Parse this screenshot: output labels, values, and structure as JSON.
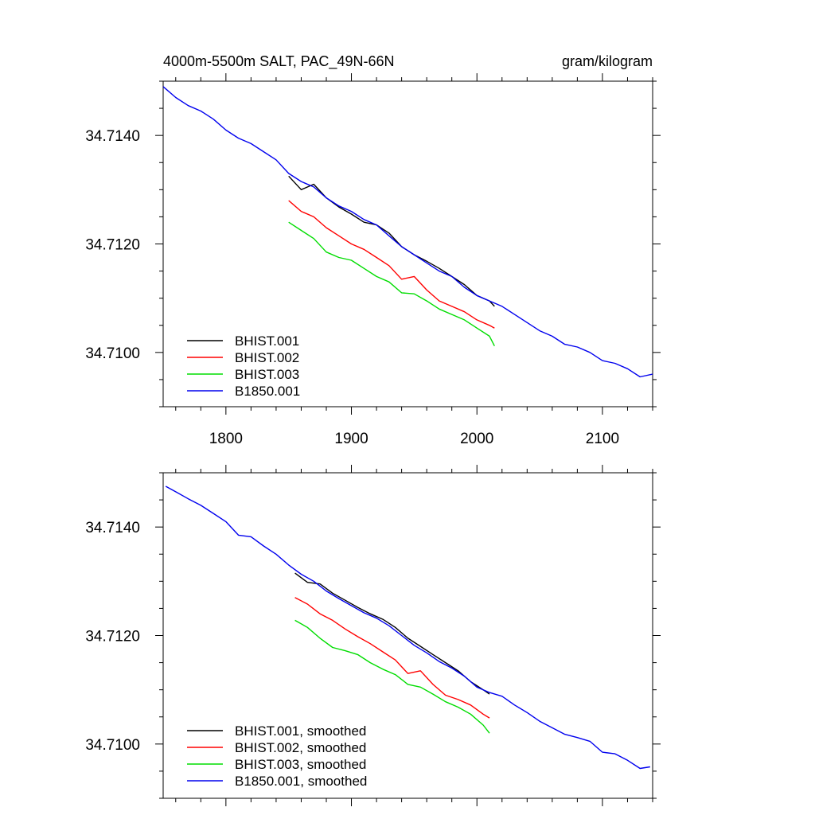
{
  "chart_data": [
    {
      "type": "line",
      "title": "4000m-5500m SALT, PAC_49N-66N",
      "units": "gram/kilogram",
      "xlabel": "",
      "ylabel": "",
      "xlim": [
        1750,
        2140
      ],
      "ylim": [
        34.709,
        34.715
      ],
      "xticks": [
        1800,
        1900,
        2000,
        2100
      ],
      "xtick_labels": [
        "1800",
        "1900",
        "2000",
        "2100"
      ],
      "yticks": [
        34.71,
        34.712,
        34.714
      ],
      "ytick_labels": [
        "34.7100",
        "34.7120",
        "34.7140"
      ],
      "legend_position": "bottom-left",
      "series": [
        {
          "name": "BHIST.001",
          "color": "#000000",
          "x": [
            1850,
            1860,
            1870,
            1880,
            1890,
            1900,
            1910,
            1920,
            1930,
            1940,
            1950,
            1960,
            1970,
            1980,
            1990,
            2000,
            2010,
            2014
          ],
          "y": [
            34.71325,
            34.713,
            34.7131,
            34.71285,
            34.71268,
            34.71255,
            34.7124,
            34.71235,
            34.7122,
            34.71195,
            34.7118,
            34.71168,
            34.71155,
            34.7114,
            34.71125,
            34.71105,
            34.71095,
            34.71085
          ]
        },
        {
          "name": "BHIST.002",
          "color": "#ff0000",
          "x": [
            1850,
            1860,
            1870,
            1880,
            1890,
            1900,
            1910,
            1920,
            1930,
            1940,
            1950,
            1960,
            1970,
            1980,
            1990,
            2000,
            2010,
            2014
          ],
          "y": [
            34.7128,
            34.7126,
            34.7125,
            34.7123,
            34.71215,
            34.712,
            34.7119,
            34.71175,
            34.7116,
            34.71135,
            34.7114,
            34.71115,
            34.71095,
            34.71085,
            34.71075,
            34.7106,
            34.7105,
            34.71045
          ]
        },
        {
          "name": "BHIST.003",
          "color": "#00dd00",
          "x": [
            1850,
            1860,
            1870,
            1880,
            1890,
            1900,
            1910,
            1920,
            1930,
            1940,
            1950,
            1960,
            1970,
            1980,
            1990,
            2000,
            2010,
            2014
          ],
          "y": [
            34.7124,
            34.71225,
            34.7121,
            34.71185,
            34.71175,
            34.7117,
            34.71155,
            34.7114,
            34.7113,
            34.7111,
            34.71108,
            34.71095,
            34.7108,
            34.7107,
            34.7106,
            34.71045,
            34.7103,
            34.71012
          ]
        },
        {
          "name": "B1850.001",
          "color": "#0000ee",
          "x": [
            1750,
            1760,
            1770,
            1780,
            1790,
            1800,
            1810,
            1820,
            1830,
            1840,
            1850,
            1860,
            1870,
            1880,
            1890,
            1900,
            1910,
            1920,
            1930,
            1940,
            1950,
            1960,
            1970,
            1980,
            1990,
            2000,
            2010,
            2020,
            2030,
            2040,
            2050,
            2060,
            2070,
            2080,
            2090,
            2100,
            2110,
            2120,
            2130,
            2140
          ],
          "y": [
            34.7149,
            34.7147,
            34.71455,
            34.71445,
            34.7143,
            34.7141,
            34.71395,
            34.71385,
            34.7137,
            34.71355,
            34.7133,
            34.71315,
            34.71305,
            34.71285,
            34.7127,
            34.7126,
            34.71245,
            34.71235,
            34.71215,
            34.71195,
            34.7118,
            34.71165,
            34.7115,
            34.7114,
            34.7112,
            34.71105,
            34.71095,
            34.71085,
            34.7107,
            34.71055,
            34.7104,
            34.7103,
            34.71015,
            34.7101,
            34.71,
            34.70985,
            34.7098,
            34.7097,
            34.70955,
            34.7096
          ]
        }
      ]
    },
    {
      "type": "line",
      "title": "",
      "xlabel": "",
      "ylabel": "",
      "xlim": [
        1750,
        2140
      ],
      "ylim": [
        34.709,
        34.715
      ],
      "xticks": [
        1800,
        1900,
        2000,
        2100
      ],
      "xtick_labels": [],
      "yticks": [
        34.71,
        34.712,
        34.714
      ],
      "ytick_labels": [
        "34.7100",
        "34.7120",
        "34.7140"
      ],
      "legend_position": "bottom-left",
      "series": [
        {
          "name": "BHIST.001, smoothed",
          "color": "#000000",
          "x": [
            1855,
            1865,
            1875,
            1885,
            1895,
            1905,
            1915,
            1925,
            1935,
            1945,
            1955,
            1965,
            1975,
            1985,
            1995,
            2005,
            2010
          ],
          "y": [
            34.71315,
            34.71298,
            34.71295,
            34.71278,
            34.71265,
            34.71252,
            34.7124,
            34.7123,
            34.71215,
            34.71195,
            34.7118,
            34.71165,
            34.7115,
            34.71135,
            34.71115,
            34.711,
            34.71092
          ]
        },
        {
          "name": "BHIST.002, smoothed",
          "color": "#ff0000",
          "x": [
            1855,
            1865,
            1875,
            1885,
            1895,
            1905,
            1915,
            1925,
            1935,
            1945,
            1955,
            1965,
            1975,
            1985,
            1995,
            2005,
            2010
          ],
          "y": [
            34.7127,
            34.71258,
            34.7124,
            34.71228,
            34.71212,
            34.71198,
            34.71185,
            34.7117,
            34.71155,
            34.7113,
            34.71135,
            34.7111,
            34.7109,
            34.71082,
            34.71072,
            34.71055,
            34.71048
          ]
        },
        {
          "name": "BHIST.003, smoothed",
          "color": "#00dd00",
          "x": [
            1855,
            1865,
            1875,
            1885,
            1895,
            1905,
            1915,
            1925,
            1935,
            1945,
            1955,
            1965,
            1975,
            1985,
            1995,
            2005,
            2010
          ],
          "y": [
            34.71228,
            34.71215,
            34.71195,
            34.71178,
            34.71172,
            34.71165,
            34.7115,
            34.71138,
            34.71128,
            34.7111,
            34.71105,
            34.71092,
            34.71078,
            34.71068,
            34.71055,
            34.71035,
            34.7102
          ]
        },
        {
          "name": "B1850.001, smoothed",
          "color": "#0000ee",
          "x": [
            1752,
            1760,
            1770,
            1780,
            1790,
            1800,
            1810,
            1820,
            1830,
            1840,
            1850,
            1860,
            1870,
            1880,
            1890,
            1900,
            1910,
            1920,
            1930,
            1940,
            1950,
            1960,
            1970,
            1980,
            1990,
            2000,
            2010,
            2020,
            2030,
            2040,
            2050,
            2060,
            2070,
            2080,
            2090,
            2100,
            2110,
            2120,
            2130,
            2138
          ],
          "y": [
            34.71475,
            34.71465,
            34.71452,
            34.7144,
            34.71425,
            34.7141,
            34.71385,
            34.71382,
            34.71365,
            34.7135,
            34.7133,
            34.71313,
            34.713,
            34.71282,
            34.71268,
            34.71255,
            34.71242,
            34.71232,
            34.71218,
            34.712,
            34.71182,
            34.71168,
            34.71152,
            34.7114,
            34.71125,
            34.71105,
            34.71095,
            34.71088,
            34.71072,
            34.71058,
            34.71042,
            34.7103,
            34.71018,
            34.71012,
            34.71005,
            34.70985,
            34.70982,
            34.7097,
            34.70955,
            34.70958
          ]
        }
      ]
    }
  ]
}
